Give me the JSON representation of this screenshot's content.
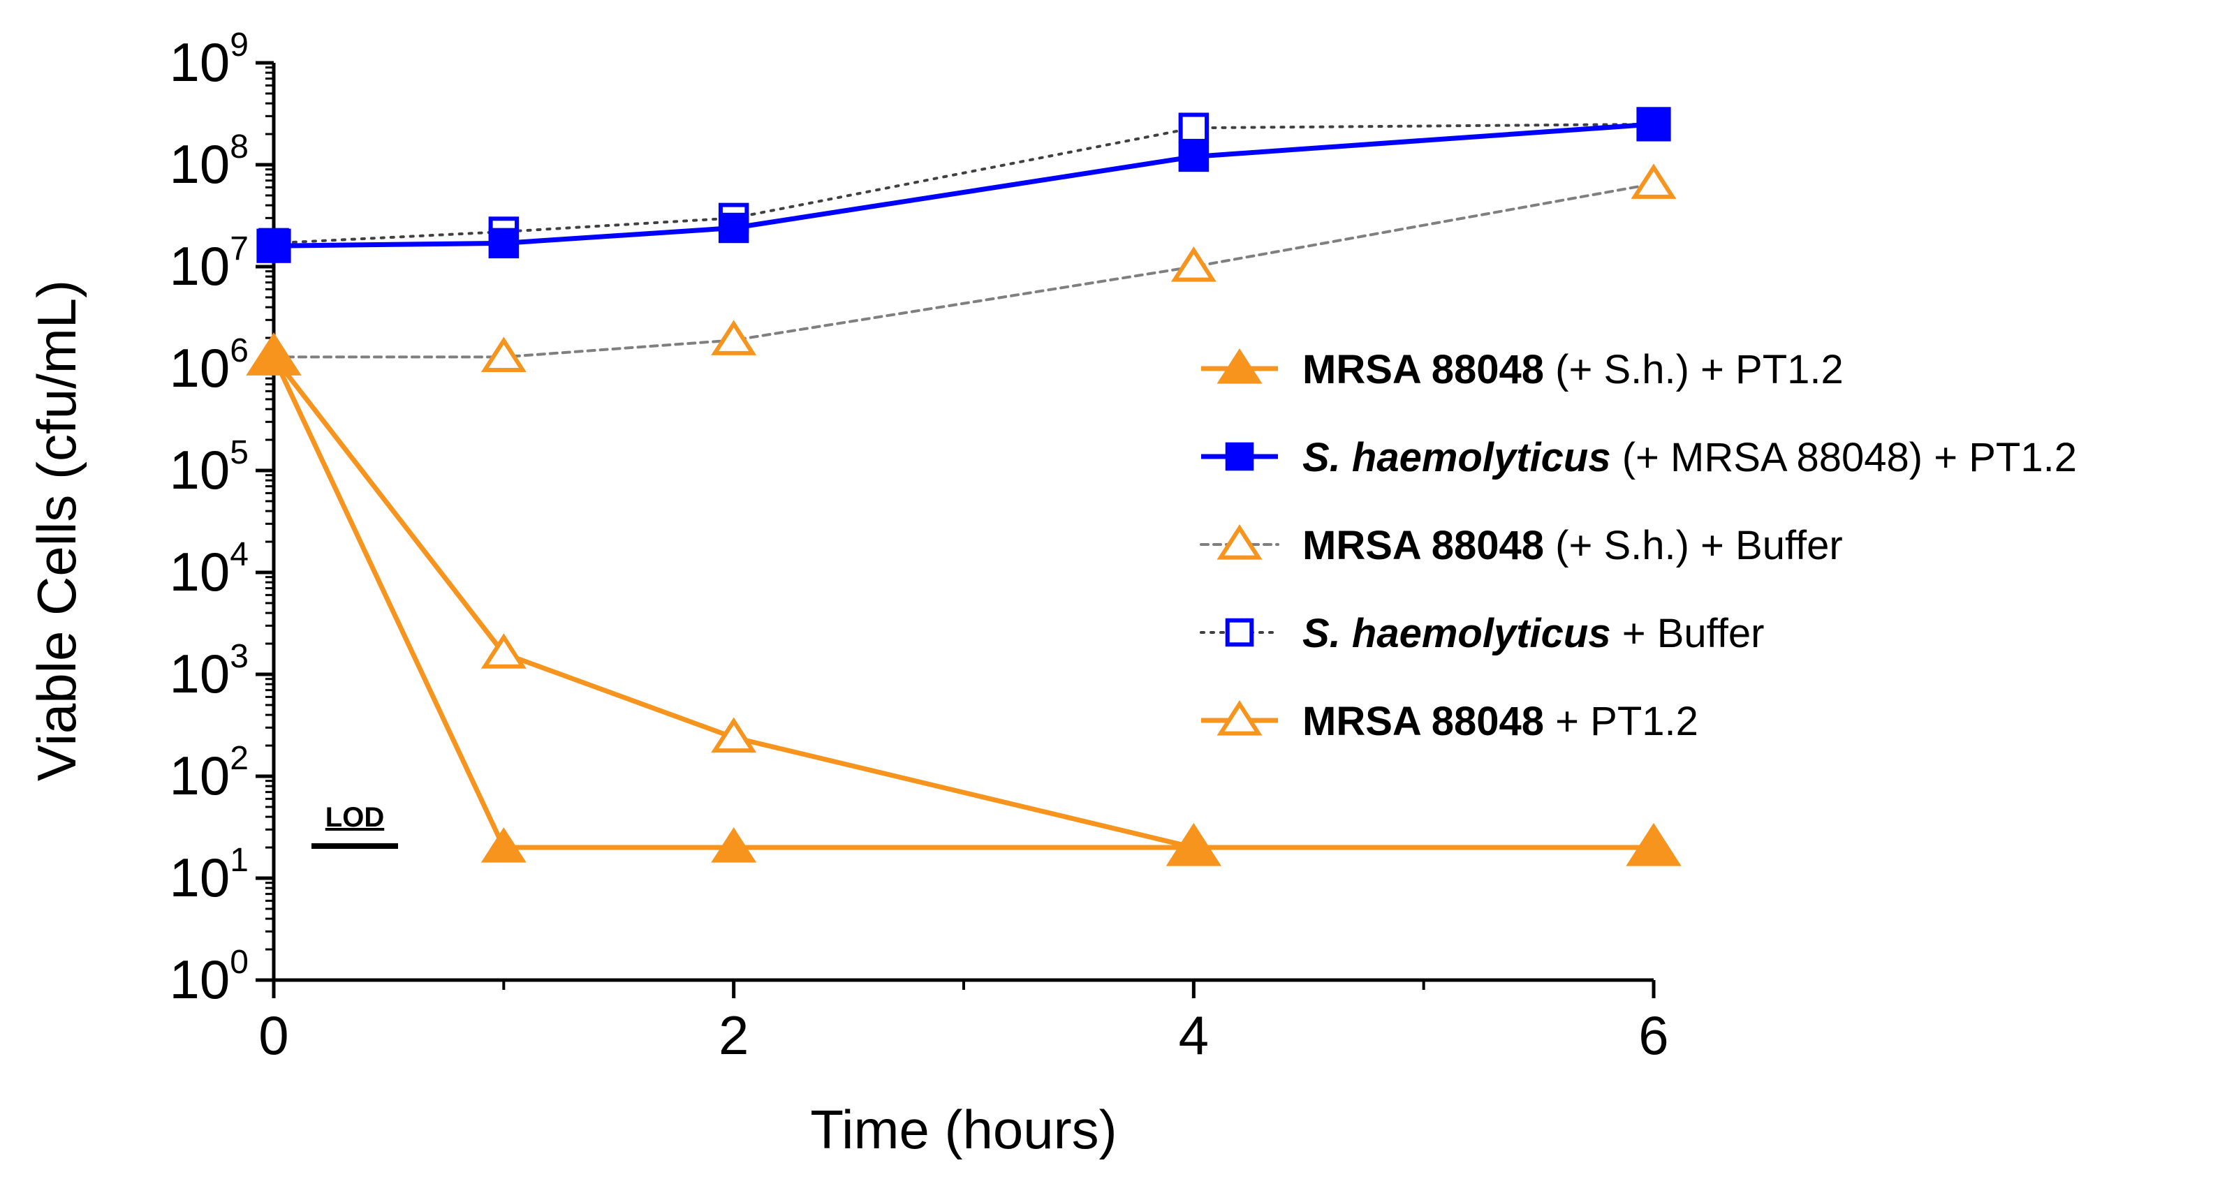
{
  "chart_data": {
    "type": "line",
    "title": "",
    "xlabel": "Time (hours)",
    "ylabel": "Viable Cells (cfu/mL)",
    "yscale": "log",
    "xlim": [
      0,
      6
    ],
    "ylim": [
      1,
      1000000000
    ],
    "x_ticks": [
      "0",
      "2",
      "4",
      "6"
    ],
    "y_ticks": [
      {
        "base": "10",
        "exp": "0"
      },
      {
        "base": "10",
        "exp": "1"
      },
      {
        "base": "10",
        "exp": "2"
      },
      {
        "base": "10",
        "exp": "3"
      },
      {
        "base": "10",
        "exp": "4"
      },
      {
        "base": "10",
        "exp": "5"
      },
      {
        "base": "10",
        "exp": "6"
      },
      {
        "base": "10",
        "exp": "7"
      },
      {
        "base": "10",
        "exp": "8"
      },
      {
        "base": "10",
        "exp": "9"
      }
    ],
    "legend_position": "right",
    "annotations": [
      {
        "text": "LOD",
        "value": 25
      }
    ],
    "series": [
      {
        "name": "MRSA 88048 (+ S.h.) + PT1.2",
        "legend_parts": [
          {
            "text": "MRSA 88048",
            "bold": true,
            "italic": false
          },
          {
            "text": " (+ S.h.) + PT1.2",
            "bold": false,
            "italic": false
          }
        ],
        "x": [
          0,
          1,
          2,
          4,
          6
        ],
        "values": [
          1300000,
          20,
          20,
          20,
          20
        ],
        "color": "#f7941d",
        "marker": "triangle-filled",
        "line": "solid"
      },
      {
        "name": "S. haemolyticus (+ MRSA 88048) + PT1.2",
        "legend_parts": [
          {
            "text": "S. haemolyticus",
            "bold": true,
            "italic": true
          },
          {
            "text": " (+ MRSA 88048) + PT1.2",
            "bold": false,
            "italic": false
          }
        ],
        "x": [
          0,
          1,
          2,
          4,
          6
        ],
        "values": [
          16000000,
          17000000,
          24000000,
          120000000,
          250000000
        ],
        "color": "#0000ff",
        "marker": "square-filled",
        "line": "solid"
      },
      {
        "name": "MRSA 88048 (+ S.h.) + Buffer",
        "legend_parts": [
          {
            "text": "MRSA 88048",
            "bold": true,
            "italic": false
          },
          {
            "text": " (+ S.h.) + Buffer",
            "bold": false,
            "italic": false
          }
        ],
        "x": [
          0,
          1,
          2,
          4,
          6
        ],
        "values": [
          1300000,
          1300000,
          1900000,
          10000000,
          65000000
        ],
        "color": "#f7941d",
        "line_color": "#7f7f7f",
        "marker": "triangle-open",
        "line": "dashed"
      },
      {
        "name": "S. haemolyticus + Buffer",
        "legend_parts": [
          {
            "text": "S. haemolyticus",
            "bold": true,
            "italic": true
          },
          {
            "text": " + Buffer",
            "bold": false,
            "italic": false
          }
        ],
        "x": [
          0,
          1,
          2,
          4,
          6
        ],
        "values": [
          17000000,
          22000000,
          30000000,
          230000000,
          250000000
        ],
        "color": "#0000ff",
        "line_color": "#404040",
        "marker": "square-open",
        "line": "dotted"
      },
      {
        "name": "MRSA 88048 + PT1.2",
        "legend_parts": [
          {
            "text": "MRSA 88048",
            "bold": true,
            "italic": false
          },
          {
            "text": " + PT1.2",
            "bold": false,
            "italic": false
          }
        ],
        "x": [
          0,
          1,
          2,
          4
        ],
        "values": [
          1300000,
          1600,
          240,
          20
        ],
        "color": "#f7941d",
        "marker": "triangle-open",
        "line": "solid"
      }
    ]
  }
}
